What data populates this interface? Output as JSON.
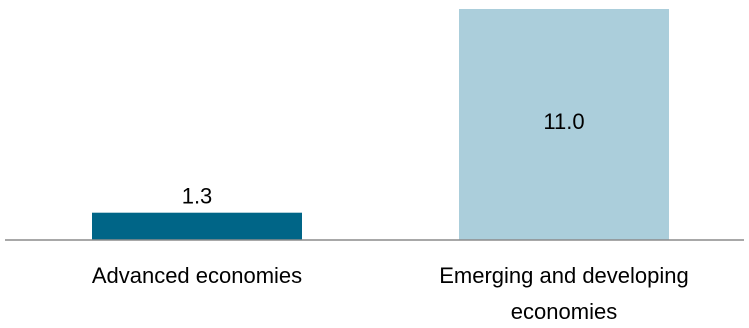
{
  "chart_data": {
    "type": "bar",
    "title": "",
    "xlabel": "",
    "ylabel": "",
    "categories": [
      [
        "Advanced economies"
      ],
      [
        "Emerging and developing",
        "economies"
      ]
    ],
    "values": [
      1.3,
      11.0
    ],
    "value_labels": [
      "1.3",
      "11.0"
    ],
    "colors": [
      "#006587",
      "#abcedb"
    ],
    "ylim": [
      0,
      11.0
    ],
    "grid": false,
    "legend": "none"
  }
}
